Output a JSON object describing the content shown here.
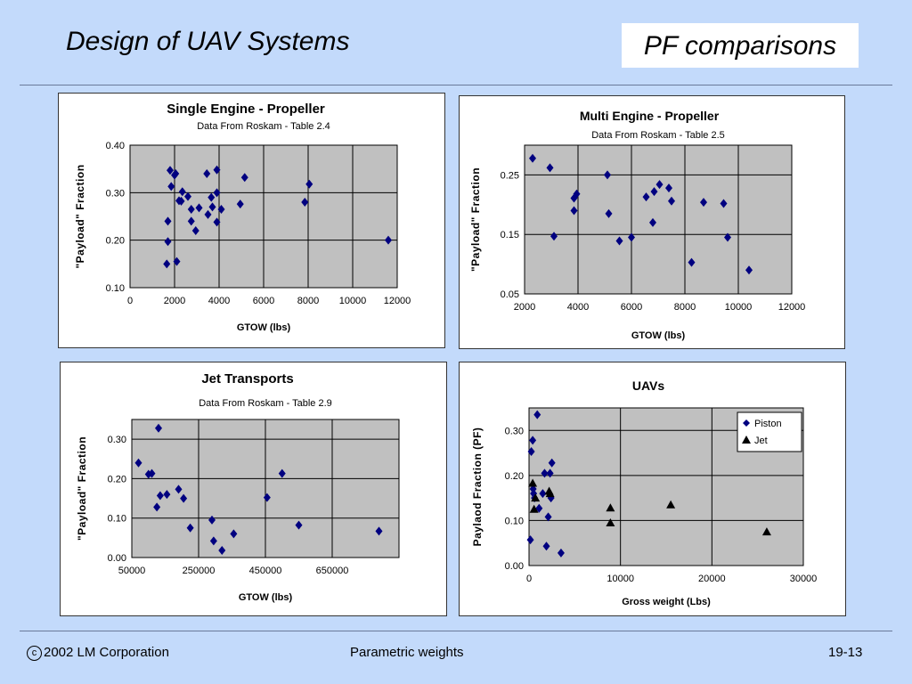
{
  "header": {
    "title": "Design of UAV Systems",
    "topic": "PF comparisons"
  },
  "footer": {
    "copyright_symbol": "c",
    "copyright": "2002 LM Corporation",
    "center": "Parametric weights",
    "page": "19-13"
  },
  "chart_data": [
    {
      "type": "scatter",
      "title": "Single Engine - Propeller",
      "subtitle": "Data From Roskam - Table 2.4",
      "xlabel": "GTOW (lbs)",
      "ylabel": "\"Payload\" Fraction",
      "xlim": [
        0,
        12000
      ],
      "ylim": [
        0.1,
        0.4
      ],
      "xticks": [
        0,
        2000,
        4000,
        6000,
        8000,
        10000,
        12000
      ],
      "xtick_labels": [
        "0",
        "2000",
        "4000",
        "6000",
        "8000",
        "10000",
        "12000"
      ],
      "yticks": [
        0.1,
        0.2,
        0.3,
        0.4
      ],
      "ytick_labels": [
        "0.10",
        "0.20",
        "0.30",
        "0.40"
      ],
      "grid": true,
      "series": [
        {
          "marker": "diamond",
          "color": "#000080",
          "points": [
            [
              1650,
              0.15
            ],
            [
              1700,
              0.197
            ],
            [
              1700,
              0.24
            ],
            [
              1800,
              0.347
            ],
            [
              1850,
              0.313
            ],
            [
              2000,
              0.337
            ],
            [
              2050,
              0.34
            ],
            [
              2100,
              0.155
            ],
            [
              2200,
              0.283
            ],
            [
              2300,
              0.282
            ],
            [
              2350,
              0.302
            ],
            [
              2600,
              0.292
            ],
            [
              2750,
              0.265
            ],
            [
              2750,
              0.24
            ],
            [
              2950,
              0.22
            ],
            [
              3100,
              0.268
            ],
            [
              3450,
              0.34
            ],
            [
              3500,
              0.254
            ],
            [
              3650,
              0.29
            ],
            [
              3700,
              0.27
            ],
            [
              3900,
              0.348
            ],
            [
              3900,
              0.3
            ],
            [
              3900,
              0.238
            ],
            [
              4100,
              0.265
            ],
            [
              4950,
              0.276
            ],
            [
              5150,
              0.332
            ],
            [
              7850,
              0.28
            ],
            [
              8050,
              0.318
            ],
            [
              11600,
              0.2
            ]
          ]
        }
      ]
    },
    {
      "type": "scatter",
      "title": "Multi Engine - Propeller",
      "subtitle": "Data From Roskam - Table 2.5",
      "xlabel": "GTOW (lbs)",
      "ylabel": "\"Payload\" Fraction",
      "xlim": [
        2000,
        12000
      ],
      "ylim": [
        0.05,
        0.3
      ],
      "xticks": [
        2000,
        4000,
        6000,
        8000,
        10000,
        12000
      ],
      "xtick_labels": [
        "2000",
        "4000",
        "6000",
        "8000",
        "10000",
        "12000"
      ],
      "yticks": [
        0.05,
        0.15,
        0.25
      ],
      "ytick_labels": [
        "0.05",
        "0.15",
        "0.25"
      ],
      "grid": true,
      "series": [
        {
          "marker": "diamond",
          "color": "#000080",
          "points": [
            [
              2300,
              0.278
            ],
            [
              2950,
              0.262
            ],
            [
              3100,
              0.147
            ],
            [
              3850,
              0.19
            ],
            [
              3850,
              0.211
            ],
            [
              3950,
              0.218
            ],
            [
              5100,
              0.25
            ],
            [
              5150,
              0.185
            ],
            [
              5550,
              0.139
            ],
            [
              6000,
              0.145
            ],
            [
              6550,
              0.213
            ],
            [
              6800,
              0.17
            ],
            [
              6850,
              0.222
            ],
            [
              7050,
              0.234
            ],
            [
              7400,
              0.228
            ],
            [
              7500,
              0.206
            ],
            [
              8250,
              0.103
            ],
            [
              8700,
              0.204
            ],
            [
              9450,
              0.202
            ],
            [
              9600,
              0.145
            ],
            [
              10400,
              0.09
            ]
          ]
        }
      ]
    },
    {
      "type": "scatter",
      "title": "Jet Transports",
      "subtitle": "Data From Roskam - Table 2.9",
      "xlabel": "GTOW (lbs)",
      "ylabel": "\"Payload\" Fraction",
      "xlim": [
        50000,
        850000
      ],
      "ylim": [
        0.0,
        0.35
      ],
      "xticks": [
        50000,
        250000,
        450000,
        650000,
        850000
      ],
      "xtick_labels": [
        "50000",
        "250000",
        "450000",
        "650000",
        ""
      ],
      "yticks": [
        0.0,
        0.1,
        0.2,
        0.3
      ],
      "ytick_labels": [
        "0.00",
        "0.10",
        "0.20",
        "0.30"
      ],
      "grid": true,
      "series": [
        {
          "marker": "diamond",
          "color": "#000080",
          "points": [
            [
              70000,
              0.24
            ],
            [
              100000,
              0.211
            ],
            [
              110000,
              0.213
            ],
            [
              125000,
              0.128
            ],
            [
              130000,
              0.328
            ],
            [
              135000,
              0.157
            ],
            [
              155000,
              0.16
            ],
            [
              190000,
              0.173
            ],
            [
              205000,
              0.15
            ],
            [
              225000,
              0.075
            ],
            [
              290000,
              0.095
            ],
            [
              295000,
              0.042
            ],
            [
              320000,
              0.018
            ],
            [
              355000,
              0.06
            ],
            [
              455000,
              0.152
            ],
            [
              500000,
              0.213
            ],
            [
              550000,
              0.082
            ],
            [
              790000,
              0.067
            ]
          ]
        }
      ]
    },
    {
      "type": "scatter",
      "title": "UAVs",
      "xlabel": "Gross weight (Lbs)",
      "ylabel": "Paylaod Fraction (PF)",
      "xlim": [
        0,
        30000
      ],
      "ylim": [
        0.0,
        0.35
      ],
      "xticks": [
        0,
        10000,
        20000,
        30000
      ],
      "xtick_labels": [
        "0",
        "10000",
        "20000",
        "30000"
      ],
      "yticks": [
        0.0,
        0.1,
        0.2,
        0.3
      ],
      "ytick_labels": [
        "0.00",
        "0.10",
        "0.20",
        "0.30"
      ],
      "grid": true,
      "legend": "top-right",
      "series": [
        {
          "name": "Piston",
          "marker": "diamond",
          "color": "#000080",
          "points": [
            [
              150,
              0.057
            ],
            [
              250,
              0.253
            ],
            [
              400,
              0.278
            ],
            [
              450,
              0.17
            ],
            [
              500,
              0.16
            ],
            [
              600,
              0.15
            ],
            [
              900,
              0.335
            ],
            [
              1100,
              0.127
            ],
            [
              1500,
              0.16
            ],
            [
              1700,
              0.205
            ],
            [
              1900,
              0.043
            ],
            [
              2100,
              0.108
            ],
            [
              2300,
              0.205
            ],
            [
              2400,
              0.15
            ],
            [
              2500,
              0.228
            ],
            [
              3500,
              0.028
            ]
          ]
        },
        {
          "name": "Jet",
          "marker": "triangle",
          "color": "#000000",
          "points": [
            [
              400,
              0.183
            ],
            [
              550,
              0.125
            ],
            [
              700,
              0.15
            ],
            [
              2200,
              0.165
            ],
            [
              2300,
              0.16
            ],
            [
              8900,
              0.128
            ],
            [
              8900,
              0.095
            ],
            [
              15500,
              0.135
            ],
            [
              26000,
              0.075
            ]
          ]
        }
      ]
    }
  ]
}
